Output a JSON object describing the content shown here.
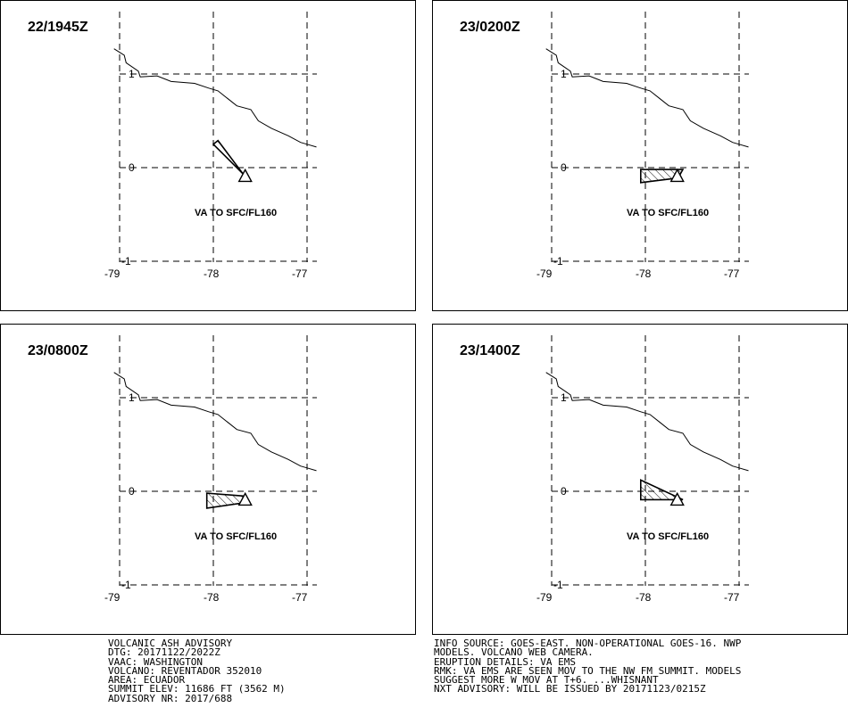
{
  "panels": [
    {
      "time": "22/1945Z",
      "label": "VA TO SFC/FL160",
      "polygon": [
        [
          -77.65,
          -0.11
        ],
        [
          -77.95,
          0.29
        ],
        [
          -78.0,
          0.25
        ],
        [
          -77.6,
          -0.15
        ]
      ]
    },
    {
      "time": "23/0200Z",
      "label": "VA TO SFC/FL160",
      "polygon": [
        [
          -77.6,
          -0.02
        ],
        [
          -78.05,
          -0.02
        ],
        [
          -78.05,
          -0.16
        ],
        [
          -77.65,
          -0.11
        ]
      ]
    },
    {
      "time": "23/0800Z",
      "label": "VA TO SFC/FL160",
      "polygon": [
        [
          -77.65,
          -0.12
        ],
        [
          -78.07,
          -0.18
        ],
        [
          -78.07,
          -0.02
        ],
        [
          -77.68,
          -0.05
        ]
      ]
    },
    {
      "time": "23/1400Z",
      "label": "VA TO SFC/FL160",
      "polygon": [
        [
          -77.6,
          -0.09
        ],
        [
          -78.05,
          0.12
        ],
        [
          -78.05,
          -0.09
        ],
        [
          -77.6,
          -0.09
        ]
      ]
    }
  ],
  "axes": {
    "x_ticks": [
      -79,
      -78,
      -77
    ],
    "y_ticks": [
      1,
      0,
      -1
    ],
    "x_labels": [
      "-79",
      "-78",
      "-77"
    ],
    "y_labels": [
      "1",
      "0",
      "-1"
    ]
  },
  "volcano": {
    "lon": -77.66,
    "lat": -0.08,
    "icon": "volcano-triangle-icon"
  },
  "coastline": [
    [
      -79.06,
      1.27
    ],
    [
      -78.95,
      1.2
    ],
    [
      -78.93,
      1.12
    ],
    [
      -78.8,
      1.03
    ],
    [
      -78.78,
      0.97
    ],
    [
      -78.6,
      0.98
    ],
    [
      -78.45,
      0.92
    ],
    [
      -78.2,
      0.9
    ],
    [
      -78.05,
      0.85
    ],
    [
      -77.95,
      0.82
    ],
    [
      -77.85,
      0.74
    ],
    [
      -77.75,
      0.66
    ],
    [
      -77.6,
      0.62
    ],
    [
      -77.52,
      0.5
    ],
    [
      -77.38,
      0.42
    ],
    [
      -77.2,
      0.34
    ],
    [
      -77.07,
      0.27
    ],
    [
      -77.0,
      0.25
    ],
    [
      -76.9,
      0.22
    ]
  ],
  "advisory_left": [
    "VOLCANIC ASH ADVISORY",
    "DTG: 20171122/2022Z",
    "VAAC: WASHINGTON",
    "VOLCANO: REVENTADOR 352010",
    "AREA: ECUADOR",
    "SUMMIT ELEV: 11686 FT (3562 M)",
    "ADVISORY NR: 2017/688"
  ],
  "advisory_right": [
    "INFO SOURCE: GOES-EAST. NON-OPERATIONAL GOES-16. NWP",
    "MODELS. VOLCANO WEB CAMERA.",
    "ERUPTION DETAILS: VA EMS",
    "RMK: VA EMS ARE SEEN MOV TO THE NW FM SUMMIT. MODELS",
    "SUGGEST MORE W MOV AT T+6. ...WHISNANT",
    "NXT ADVISORY: WILL BE ISSUED BY 20171123/0215Z"
  ]
}
